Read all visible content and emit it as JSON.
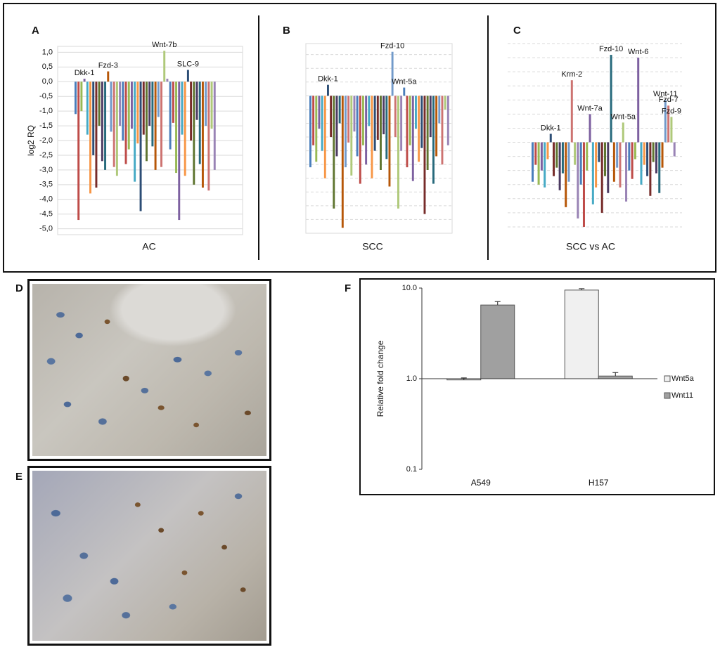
{
  "chart_data": [
    {
      "type": "bar",
      "panel": "A",
      "y_label": "log2 RQ",
      "x_label": "AC",
      "ylim": [
        -5.2,
        1.2
      ],
      "yticks": [
        {
          "value": 1.0,
          "label": "1,0"
        },
        {
          "value": 0.5,
          "label": "0,5"
        },
        {
          "value": 0,
          "label": "0,0"
        },
        {
          "value": -0.5,
          "label": "-0,5"
        },
        {
          "value": -1.0,
          "label": "-1,0"
        },
        {
          "value": -1.5,
          "label": "-1,5"
        },
        {
          "value": -2.0,
          "label": "-2,0"
        },
        {
          "value": -2.5,
          "label": "-2,5"
        },
        {
          "value": -3.0,
          "label": "-3,0"
        },
        {
          "value": -3.5,
          "label": "-3,5"
        },
        {
          "value": -4.0,
          "label": "-4,0"
        },
        {
          "value": -4.5,
          "label": "-4,5"
        },
        {
          "value": -5.0,
          "label": "-5,0"
        }
      ],
      "show_tick_labels": true,
      "grid": true,
      "grid_linestyle": "solid",
      "colors": [
        "#4a7ebb",
        "#be4b48",
        "#98b954",
        "#7d60a0",
        "#46aac5",
        "#f79646",
        "#2c4d75",
        "#772c2a",
        "#5f7530",
        "#4d3b62",
        "#276a7c",
        "#b65708",
        "#729aca",
        "#cd7371",
        "#afc97a",
        "#9983b5"
      ],
      "categories": [
        null,
        null,
        null,
        "Dkk-1",
        null,
        null,
        null,
        null,
        null,
        null,
        null,
        "Fzd-3",
        null,
        null,
        null,
        null,
        null,
        null,
        null,
        null,
        null,
        null,
        null,
        null,
        null,
        null,
        null,
        null,
        null,
        null,
        "Wnt-7b",
        null,
        null,
        null,
        null,
        null,
        null,
        null,
        "SLC-9",
        null,
        null,
        null,
        null,
        null,
        null,
        null,
        null,
        null
      ],
      "values": [
        -1.1,
        -4.7,
        -1.0,
        0.1,
        -1.8,
        -3.8,
        -2.5,
        -3.6,
        -1.5,
        -2.7,
        -3.0,
        0.35,
        -1.7,
        -2.9,
        -3.2,
        -1.5,
        -2.0,
        -2.8,
        -2.3,
        -1.6,
        -3.4,
        -2.1,
        -4.4,
        -1.8,
        -2.7,
        -1.5,
        -2.2,
        -3.0,
        -1.2,
        -2.9,
        1.05,
        0.1,
        -2.3,
        -1.4,
        -3.1,
        -4.7,
        -1.8,
        -3.2,
        0.4,
        -2.0,
        -3.5,
        -1.3,
        -2.8,
        -3.6,
        -1.5,
        -3.7,
        -1.6,
        -3.0
      ]
    },
    {
      "type": "bar",
      "panel": "B",
      "x_label": "SCC",
      "ylim": [
        -5.0,
        1.9
      ],
      "yticks": [
        1.5,
        1.0,
        0.5,
        0,
        -0.5,
        -1.0,
        -1.5,
        -2.0,
        -2.5,
        -3.0,
        -3.5,
        -4.0,
        -4.5,
        -5.0
      ],
      "show_tick_labels": false,
      "grid": true,
      "grid_linestyle": "dashed",
      "colors": [
        "#4a7ebb",
        "#be4b48",
        "#98b954",
        "#7d60a0",
        "#46aac5",
        "#f79646",
        "#2c4d75",
        "#772c2a",
        "#5f7530",
        "#4d3b62",
        "#276a7c",
        "#b65708",
        "#729aca",
        "#cd7371",
        "#afc97a",
        "#9983b5"
      ],
      "categories": [
        null,
        null,
        null,
        null,
        null,
        null,
        "Dkk-1",
        null,
        null,
        null,
        null,
        null,
        null,
        null,
        null,
        null,
        null,
        null,
        null,
        null,
        null,
        null,
        null,
        null,
        null,
        null,
        null,
        null,
        "Fzd-10",
        null,
        null,
        null,
        "Wnt-5a",
        null,
        null,
        null,
        null,
        null,
        null,
        null,
        null,
        null,
        null,
        null,
        null,
        null,
        null,
        null
      ],
      "values": [
        -2.6,
        -1.8,
        -2.4,
        -1.2,
        -2.0,
        -3.0,
        0.4,
        -1.5,
        -4.1,
        -2.2,
        -1.0,
        -4.8,
        -2.6,
        -1.7,
        -2.9,
        -1.3,
        -2.2,
        -3.2,
        -1.8,
        -2.5,
        -1.1,
        -3.0,
        -2.0,
        -1.6,
        -2.7,
        -1.4,
        -2.3,
        -3.3,
        1.6,
        -1.5,
        -4.1,
        -2.0,
        0.3,
        -2.6,
        -1.8,
        -3.1,
        -1.2,
        -2.4,
        -1.9,
        -4.3,
        -2.7,
        -1.5,
        -3.2,
        -2.2,
        -1.0,
        -2.5,
        -0.5,
        -1.8
      ]
    },
    {
      "type": "bar",
      "panel": "C",
      "x_label": "SCC vs AC",
      "ylim": [
        -3.3,
        3.5
      ],
      "yticks": [
        3.5,
        3.0,
        2.5,
        2.0,
        1.5,
        1.0,
        0.5,
        0,
        -0.5,
        -1.0,
        -1.5,
        -2.0,
        -2.5,
        -3.0
      ],
      "show_tick_labels": false,
      "grid": true,
      "grid_linestyle": "dashed",
      "colors": [
        "#4a7ebb",
        "#be4b48",
        "#98b954",
        "#7d60a0",
        "#46aac5",
        "#f79646",
        "#2c4d75",
        "#772c2a",
        "#5f7530",
        "#4d3b62",
        "#276a7c",
        "#b65708",
        "#729aca",
        "#cd7371",
        "#afc97a",
        "#9983b5"
      ],
      "categories": [
        null,
        null,
        null,
        null,
        null,
        null,
        "Dkk-1",
        null,
        null,
        null,
        null,
        null,
        null,
        "Krm-2",
        null,
        null,
        null,
        null,
        null,
        "Wnt-7a",
        null,
        null,
        null,
        null,
        null,
        null,
        "Fzd-10",
        null,
        null,
        null,
        "Wnt-5a",
        null,
        null,
        null,
        null,
        "Wnt-6",
        null,
        null,
        null,
        null,
        null,
        null,
        null,
        null,
        "Wnt-11",
        "Fzd-7",
        "Fzd-9",
        null
      ],
      "values": [
        -1.4,
        -0.8,
        -1.5,
        -1.0,
        -1.6,
        -0.6,
        0.3,
        -1.2,
        -0.9,
        -1.7,
        -1.1,
        -2.3,
        -1.4,
        2.2,
        -0.8,
        -2.7,
        -1.5,
        -3.0,
        -1.0,
        1.0,
        -2.2,
        -1.6,
        -0.7,
        -2.5,
        -1.2,
        -1.8,
        3.1,
        -1.4,
        -0.9,
        -1.6,
        0.7,
        -2.1,
        -1.0,
        -1.3,
        -0.6,
        3.0,
        -1.5,
        -0.8,
        -1.2,
        -1.9,
        -0.7,
        -1.1,
        -1.8,
        -0.9,
        1.5,
        1.3,
        0.9,
        -0.5
      ]
    },
    {
      "type": "bar",
      "panel": "F",
      "y_label": "Relative fold change",
      "log_scale": true,
      "ylim": [
        0.1,
        10
      ],
      "baseline": 1,
      "yticks": [
        {
          "value": 0.1,
          "label": "0.1"
        },
        {
          "value": 1,
          "label": "1.0"
        },
        {
          "value": 10,
          "label": "10.0"
        }
      ],
      "show_tick_labels": true,
      "grid": false,
      "legend": "right",
      "categories": [
        "A549",
        "H157"
      ],
      "series": [
        {
          "name": "Wnt5a",
          "color": "#f0f0f0",
          "values": [
            0.97,
            9.5
          ],
          "errors": [
            0.05,
            0.35
          ]
        },
        {
          "name": "Wnt11",
          "color": "#a0a0a0",
          "values": [
            6.5,
            1.07
          ],
          "errors": [
            0.6,
            0.1
          ]
        }
      ]
    }
  ],
  "images": [
    {
      "label": "D"
    },
    {
      "label": "E"
    }
  ]
}
